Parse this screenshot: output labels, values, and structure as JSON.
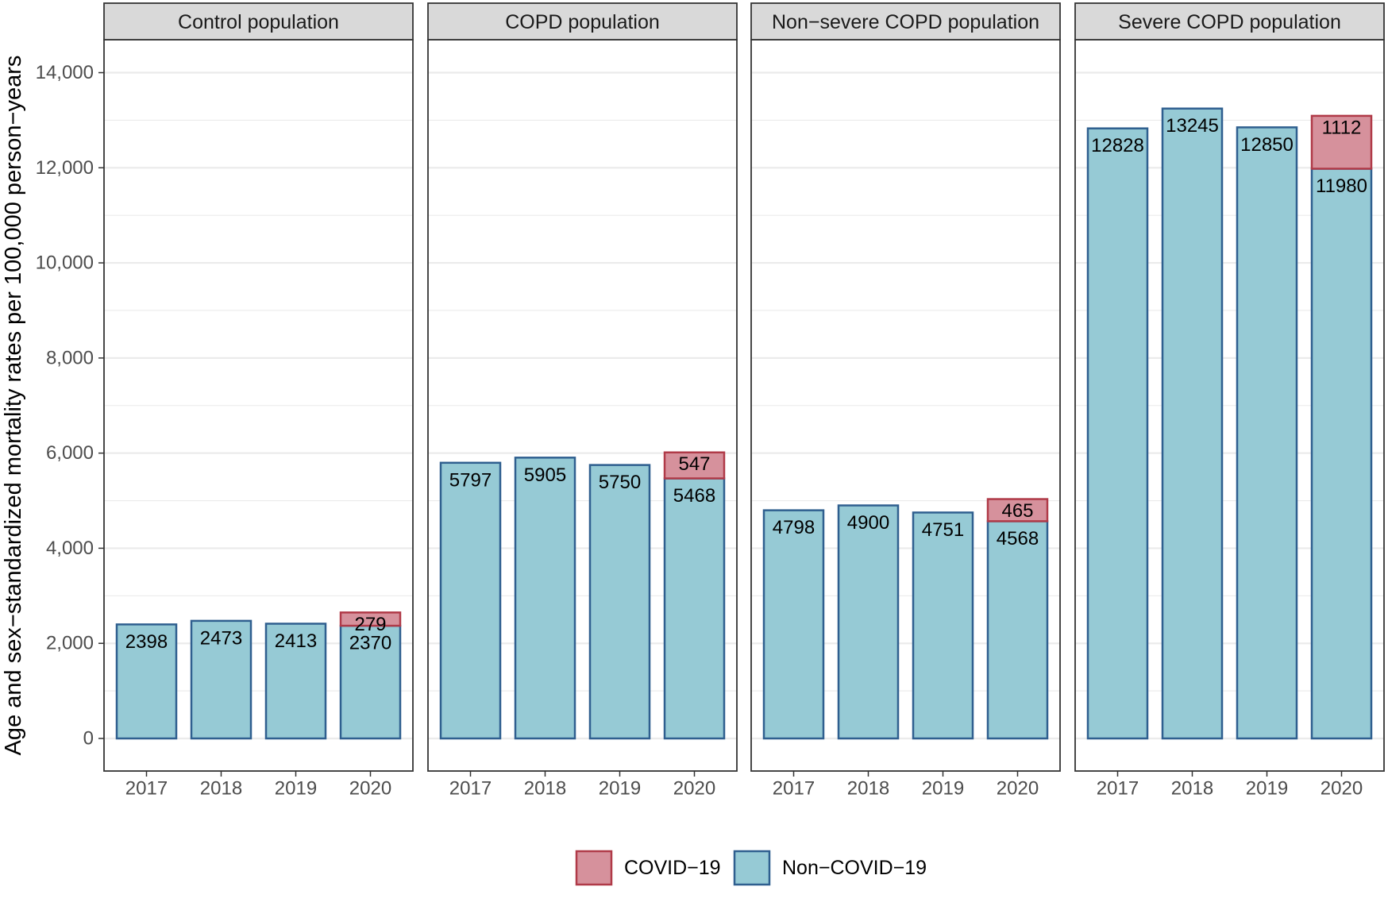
{
  "chart_data": {
    "type": "bar",
    "stacked": true,
    "ylabel": "Age and sex−standardized mortality rates per 100,000 person−years",
    "xlabel": "",
    "ylim": [
      0,
      14700
    ],
    "yticks": [
      0,
      2000,
      4000,
      6000,
      8000,
      10000,
      12000,
      14000
    ],
    "ytick_labels": [
      "0",
      "2,000",
      "4,000",
      "6,000",
      "8,000",
      "10,000",
      "12,000",
      "14,000"
    ],
    "grid": true,
    "categories": [
      "2017",
      "2018",
      "2019",
      "2020"
    ],
    "legend": {
      "position": "bottom",
      "entries": [
        {
          "name": "COVID−19",
          "fill": "#d6919c",
          "stroke": "#b03a48"
        },
        {
          "name": "Non−COVID−19",
          "fill": "#96cad5",
          "stroke": "#2f5f8f"
        }
      ]
    },
    "panels": [
      {
        "title": "Control population",
        "series": [
          {
            "name": "Non−COVID−19",
            "values": [
              2398,
              2473,
              2413,
              2370
            ]
          },
          {
            "name": "COVID−19",
            "values": [
              null,
              null,
              null,
              279
            ]
          }
        ]
      },
      {
        "title": "COPD population",
        "series": [
          {
            "name": "Non−COVID−19",
            "values": [
              5797,
              5905,
              5750,
              5468
            ]
          },
          {
            "name": "COVID−19",
            "values": [
              null,
              null,
              null,
              547
            ]
          }
        ]
      },
      {
        "title": "Non−severe COPD population",
        "series": [
          {
            "name": "Non−COVID−19",
            "values": [
              4798,
              4900,
              4751,
              4568
            ]
          },
          {
            "name": "COVID−19",
            "values": [
              null,
              null,
              null,
              465
            ]
          }
        ]
      },
      {
        "title": "Severe COPD population",
        "series": [
          {
            "name": "Non−COVID−19",
            "values": [
              12828,
              13245,
              12850,
              11980
            ]
          },
          {
            "name": "COVID−19",
            "values": [
              null,
              null,
              null,
              1112
            ]
          }
        ]
      }
    ]
  }
}
